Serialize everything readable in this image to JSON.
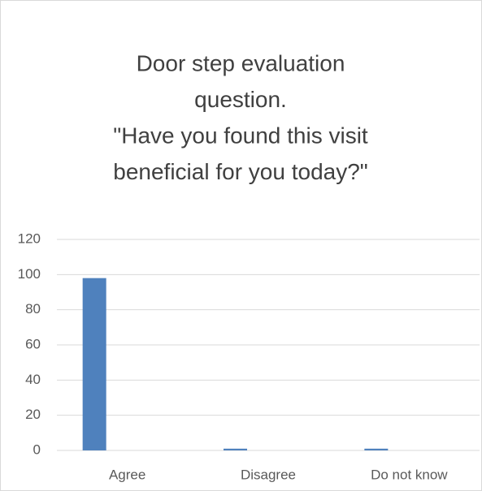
{
  "chart_data": {
    "type": "bar",
    "title": [
      "Door step evaluation",
      "question.",
      "\"Have you found this visit",
      "beneficial for you today?\""
    ],
    "categories": [
      "Agree",
      "Disagree",
      "Do not know"
    ],
    "values": [
      98,
      1,
      1
    ],
    "color": "#4f81bd",
    "ylim": [
      0,
      120
    ],
    "yticks": [
      0,
      20,
      40,
      60,
      80,
      100,
      120
    ],
    "grid": true
  }
}
